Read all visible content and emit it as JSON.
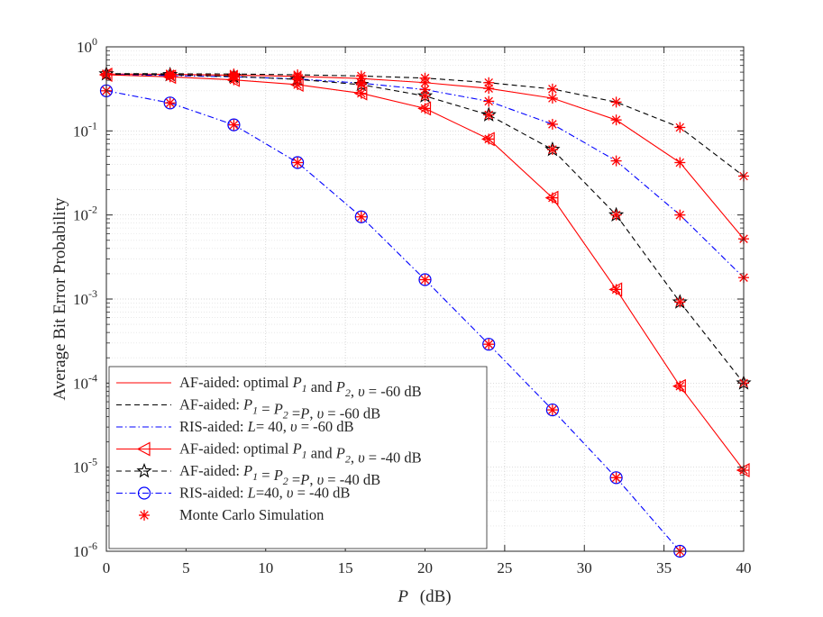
{
  "chart_data": {
    "type": "line",
    "yscale": "log",
    "xlabel": "P  (dB)",
    "xlabel_var": "P",
    "xlabel_unit": "(dB)",
    "ylabel": "Average Bit Error Probability",
    "xlim": [
      0,
      40
    ],
    "ylim": [
      1e-06,
      1
    ],
    "xticks": [
      0,
      5,
      10,
      15,
      20,
      25,
      30,
      35,
      40
    ],
    "yticks": [
      {
        "value": 1,
        "mant": "10",
        "exp": "0"
      },
      {
        "value": 0.1,
        "mant": "10",
        "exp": "-1"
      },
      {
        "value": 0.01,
        "mant": "10",
        "exp": "-2"
      },
      {
        "value": 0.001,
        "mant": "10",
        "exp": "-3"
      },
      {
        "value": 0.0001,
        "mant": "10",
        "exp": "-4"
      },
      {
        "value": 1e-05,
        "mant": "10",
        "exp": "-5"
      },
      {
        "value": 1e-06,
        "mant": "10",
        "exp": "-6"
      }
    ],
    "grid": true,
    "legend_position": "bottom-left",
    "colors": {
      "red": "#ff0000",
      "black": "#000000",
      "blue": "#0000ff",
      "text": "#262626"
    },
    "series": [
      {
        "name": "AF-aided: optimal P1 and P2, υ = -60 dB",
        "legend": [
          {
            "t": "AF-aided: optimal "
          },
          {
            "t": "P",
            "i": true
          },
          {
            "t": "1",
            "sub": true
          },
          {
            "t": " and "
          },
          {
            "t": "P",
            "i": true
          },
          {
            "t": "2",
            "sub": true
          },
          {
            "t": ", "
          },
          {
            "t": "υ",
            "i": true
          },
          {
            "t": " = -60  dB"
          }
        ],
        "color": "#ff0000",
        "dash": "solid",
        "marker": "none",
        "x": [
          0,
          4,
          8,
          12,
          16,
          20,
          24,
          28,
          32,
          36,
          40
        ],
        "y": [
          0.475,
          0.47,
          0.46,
          0.445,
          0.42,
          0.375,
          0.32,
          0.245,
          0.135,
          0.042,
          0.0052
        ]
      },
      {
        "name": "AF-aided: P1 = P2 = P, υ = -60 dB",
        "legend": [
          {
            "t": "AF-aided:  "
          },
          {
            "t": "P",
            "i": true
          },
          {
            "t": "1",
            "sub": true
          },
          {
            "t": " = "
          },
          {
            "t": "P",
            "i": true
          },
          {
            "t": "2",
            "sub": true
          },
          {
            "t": " ="
          },
          {
            "t": "P",
            "i": true
          },
          {
            "t": ", "
          },
          {
            "t": "υ",
            "i": true
          },
          {
            "t": " = -60  dB"
          }
        ],
        "color": "#000000",
        "dash": "dash",
        "marker": "none",
        "x": [
          0,
          4,
          8,
          12,
          16,
          20,
          24,
          28,
          32,
          36,
          40
        ],
        "y": [
          0.48,
          0.478,
          0.475,
          0.465,
          0.45,
          0.425,
          0.375,
          0.315,
          0.22,
          0.11,
          0.029
        ]
      },
      {
        "name": "RIS-aided: L = 40, υ = -60 dB",
        "legend": [
          {
            "t": "RIS-aided: "
          },
          {
            "t": "L",
            "i": true
          },
          {
            "t": "= 40, "
          },
          {
            "t": "υ",
            "i": true
          },
          {
            "t": " = -60  dB"
          }
        ],
        "color": "#0000ff",
        "dash": "dashdot",
        "marker": "none",
        "x": [
          0,
          4,
          8,
          12,
          16,
          20,
          24,
          28,
          32,
          36,
          40
        ],
        "y": [
          0.47,
          0.455,
          0.44,
          0.415,
          0.37,
          0.31,
          0.225,
          0.12,
          0.044,
          0.01,
          0.0018
        ]
      },
      {
        "name": "AF-aided: optimal P1 and P2, υ = -40 dB",
        "legend": [
          {
            "t": "AF-aided: optimal "
          },
          {
            "t": "P",
            "i": true
          },
          {
            "t": "1",
            "sub": true
          },
          {
            "t": " and "
          },
          {
            "t": "P",
            "i": true
          },
          {
            "t": "2",
            "sub": true
          },
          {
            "t": ", "
          },
          {
            "t": "υ",
            "i": true
          },
          {
            "t": " = -40  dB"
          }
        ],
        "color": "#ff0000",
        "dash": "solid",
        "marker": "triangle-left",
        "x": [
          0,
          4,
          8,
          12,
          16,
          20,
          24,
          28,
          32,
          36,
          40
        ],
        "y": [
          0.465,
          0.44,
          0.405,
          0.355,
          0.28,
          0.185,
          0.08,
          0.016,
          0.0013,
          9.2e-05,
          9.2e-06
        ]
      },
      {
        "name": "AF-aided: P1 = P2 = P, υ = -40 dB",
        "legend": [
          {
            "t": "AF-aided: "
          },
          {
            "t": "P",
            "i": true
          },
          {
            "t": "1",
            "sub": true
          },
          {
            "t": " = "
          },
          {
            "t": "P",
            "i": true
          },
          {
            "t": "2",
            "sub": true
          },
          {
            "t": " ="
          },
          {
            "t": "P",
            "i": true
          },
          {
            "t": ", "
          },
          {
            "t": "υ",
            "i": true
          },
          {
            "t": " =  -40 dB"
          }
        ],
        "color": "#000000",
        "dash": "dash",
        "marker": "star",
        "x": [
          0,
          4,
          8,
          12,
          16,
          20,
          24,
          28,
          32,
          36,
          40
        ],
        "y": [
          0.475,
          0.465,
          0.445,
          0.41,
          0.355,
          0.26,
          0.155,
          0.06,
          0.01,
          0.00092,
          0.0001
        ]
      },
      {
        "name": "RIS-aided: L = 40, υ = -40 dB",
        "legend": [
          {
            "t": "RIS-aided: "
          },
          {
            "t": "L",
            "i": true
          },
          {
            "t": "=40, "
          },
          {
            "t": "υ",
            "i": true
          },
          {
            "t": " = -40  dB"
          }
        ],
        "color": "#0000ff",
        "dash": "dashdot",
        "marker": "circle",
        "x": [
          0,
          4,
          8,
          12,
          16,
          20,
          24,
          28,
          32,
          36
        ],
        "y": [
          0.3,
          0.215,
          0.118,
          0.042,
          0.0095,
          0.0017,
          0.00029,
          4.8e-05,
          7.5e-06,
          1e-06
        ]
      },
      {
        "name": "Monte Carlo Simulation",
        "legend": [
          {
            "t": "Monte Carlo Simulation"
          }
        ],
        "color": "#ff0000",
        "dash": "none",
        "marker": "asterisk",
        "monte_carlo": true,
        "x": [],
        "y": []
      }
    ]
  }
}
